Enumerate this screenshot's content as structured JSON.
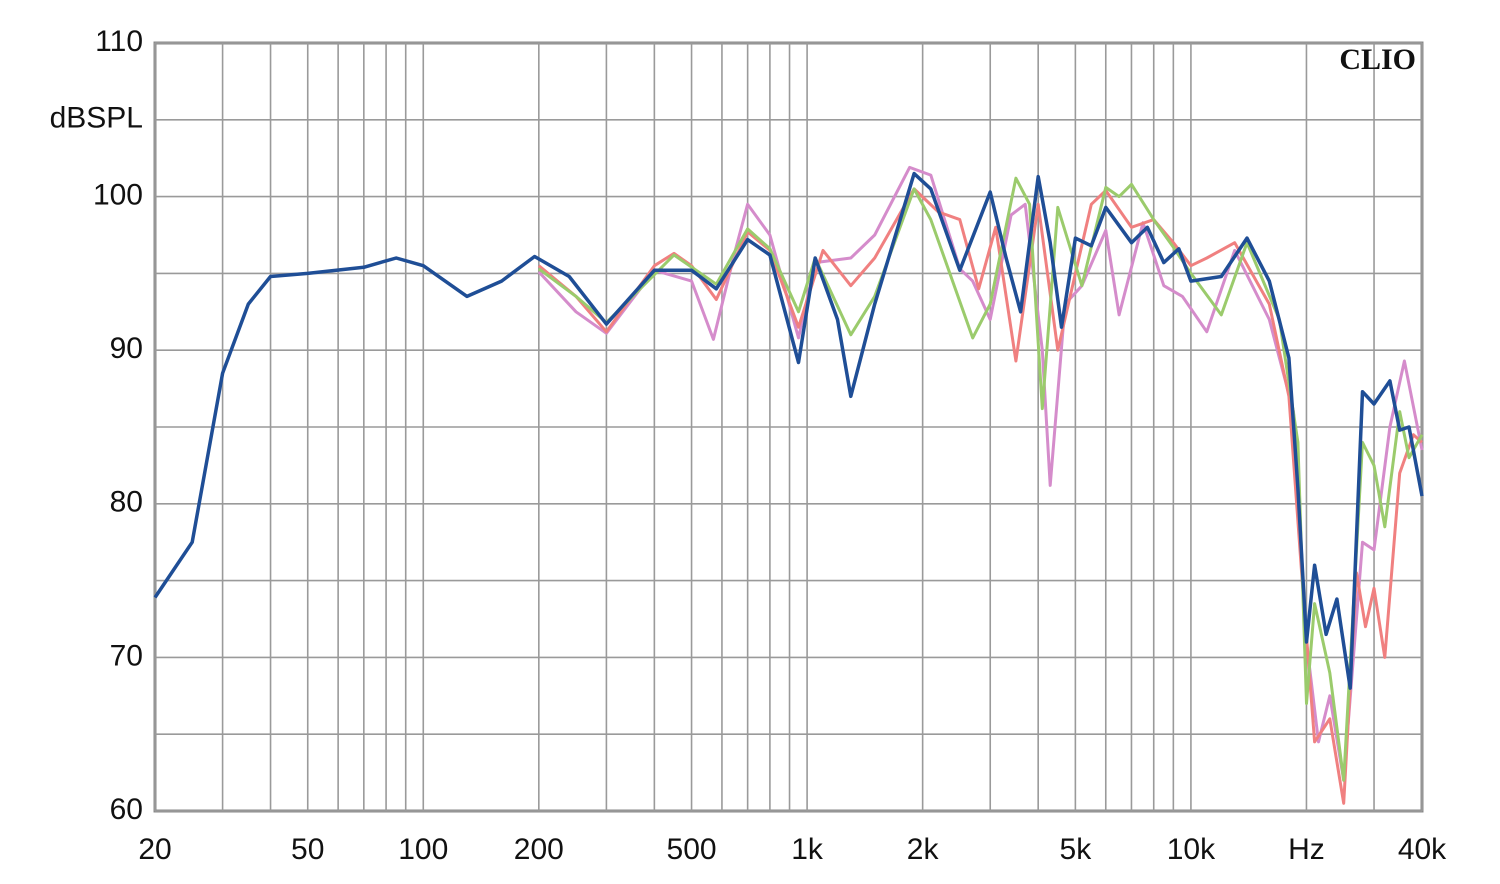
{
  "chart_data": {
    "type": "line",
    "annotation": "CLIO",
    "xscale": "log",
    "grid": true,
    "xlim": [
      20,
      40000
    ],
    "ylim": [
      60,
      110
    ],
    "xticks": [
      20,
      50,
      100,
      200,
      500,
      {
        "value": 1000,
        "label": "1k"
      },
      {
        "value": 2000,
        "label": "2k"
      },
      {
        "value": 5000,
        "label": "5k"
      },
      {
        "value": 10000,
        "label": "10k"
      },
      {
        "value": 20000,
        "label": "Hz"
      },
      {
        "value": 40000,
        "label": "40k"
      }
    ],
    "xminor": [
      30,
      40,
      60,
      70,
      80,
      90,
      300,
      400,
      600,
      700,
      800,
      900,
      3000,
      4000,
      6000,
      7000,
      8000,
      9000,
      30000
    ],
    "yticks": [
      60,
      70,
      80,
      90,
      100,
      {
        "value": 105,
        "label": "dBSPL"
      },
      110
    ],
    "yminor": [
      65,
      75,
      85,
      95
    ],
    "series": [
      {
        "color": "#d58ccb",
        "x": [
          200,
          250,
          300,
          400,
          500,
          570,
          650,
          700,
          800,
          950,
          1050,
          1300,
          1500,
          1850,
          2100,
          2500,
          2700,
          3000,
          3400,
          3700,
          4100,
          4300,
          4700,
          5200,
          6000,
          6500,
          7500,
          8500,
          9500,
          11000,
          13000,
          16000,
          18500,
          20000,
          21500,
          23000,
          25000,
          28000,
          30000,
          33000,
          36000,
          40000
        ],
        "values": [
          95.1,
          92.5,
          91.1,
          95.2,
          94.5,
          90.7,
          96.5,
          99.5,
          97.5,
          90.8,
          95.7,
          96,
          97.5,
          101.9,
          101.4,
          95.3,
          94.5,
          92,
          98.8,
          99.5,
          90,
          81.2,
          93,
          94.2,
          97.8,
          92.3,
          98.3,
          94.2,
          93.5,
          91.2,
          96.5,
          92,
          86,
          71,
          64.5,
          67.5,
          62,
          77.5,
          77,
          85,
          89.3,
          83.5
        ]
      },
      {
        "color": "#f08080",
        "x": [
          200,
          250,
          300,
          400,
          450,
          500,
          580,
          700,
          800,
          950,
          1100,
          1300,
          1500,
          1900,
          2200,
          2500,
          2800,
          3100,
          3500,
          4000,
          4500,
          5000,
          5500,
          6000,
          7000,
          8000,
          9000,
          10000,
          11000,
          13000,
          16000,
          18000,
          19500,
          21000,
          23000,
          25000,
          27000,
          28500,
          30000,
          32000,
          35000,
          38000,
          40000
        ],
        "values": [
          95.5,
          93.5,
          91.2,
          95.5,
          96.3,
          95.5,
          93.3,
          97.7,
          96.5,
          91.5,
          96.5,
          94.2,
          96,
          100.5,
          99,
          98.5,
          94,
          98,
          89.3,
          99.5,
          90,
          95,
          99.5,
          100.4,
          98,
          98.5,
          97,
          95.5,
          96,
          97,
          93,
          87,
          75,
          64.5,
          66,
          60.5,
          75.5,
          72,
          74.5,
          70,
          82,
          84.5,
          84
        ]
      },
      {
        "color": "#9bcb6c",
        "x": [
          200,
          250,
          300,
          450,
          580,
          700,
          800,
          950,
          1050,
          1300,
          1500,
          1900,
          2100,
          2700,
          3000,
          3500,
          3800,
          4100,
          4500,
          5200,
          6000,
          6500,
          7000,
          8000,
          9000,
          10000,
          12000,
          14000,
          17000,
          19000,
          20000,
          21000,
          23000,
          25000,
          28000,
          30000,
          32000,
          35000,
          37000,
          40000
        ],
        "values": [
          95.3,
          93.5,
          91.8,
          96.2,
          94.3,
          97.9,
          96.6,
          92.5,
          96,
          91,
          93.5,
          100.5,
          98.5,
          90.8,
          93,
          101.2,
          99.5,
          86.2,
          99.3,
          94.2,
          100.6,
          100,
          100.8,
          98.5,
          96.7,
          95,
          92.3,
          97,
          92,
          84,
          67,
          73.5,
          69,
          62,
          84,
          82.5,
          78.5,
          86,
          83,
          84.5
        ]
      },
      {
        "color": "#1f4e96",
        "x": [
          20,
          25,
          30,
          35,
          40,
          50,
          70,
          85,
          100,
          130,
          160,
          195,
          240,
          300,
          400,
          500,
          580,
          700,
          800,
          950,
          1050,
          1200,
          1300,
          1500,
          1900,
          2100,
          2500,
          3000,
          3300,
          3600,
          4000,
          4300,
          4600,
          5000,
          5500,
          6000,
          7000,
          7700,
          8500,
          9300,
          10000,
          12000,
          14000,
          16000,
          18000,
          19000,
          20000,
          21000,
          22500,
          24000,
          26000,
          28000,
          30000,
          33000,
          35000,
          37000,
          40000
        ],
        "values": [
          73.9,
          77.5,
          88.5,
          93,
          94.8,
          95,
          95.4,
          96,
          95.5,
          93.5,
          94.5,
          96.1,
          94.8,
          91.7,
          95.2,
          95.2,
          94,
          97.2,
          96.2,
          89.2,
          96,
          92,
          87,
          93,
          101.5,
          100.5,
          95.2,
          100.3,
          96,
          92.5,
          101.3,
          97,
          91.5,
          97.3,
          96.8,
          99.3,
          97,
          98,
          95.7,
          96.6,
          94.5,
          94.8,
          97.3,
          94.5,
          89.5,
          81,
          71,
          76,
          71.5,
          73.8,
          68,
          87.3,
          86.5,
          88,
          84.8,
          85,
          80.5
        ]
      }
    ]
  }
}
